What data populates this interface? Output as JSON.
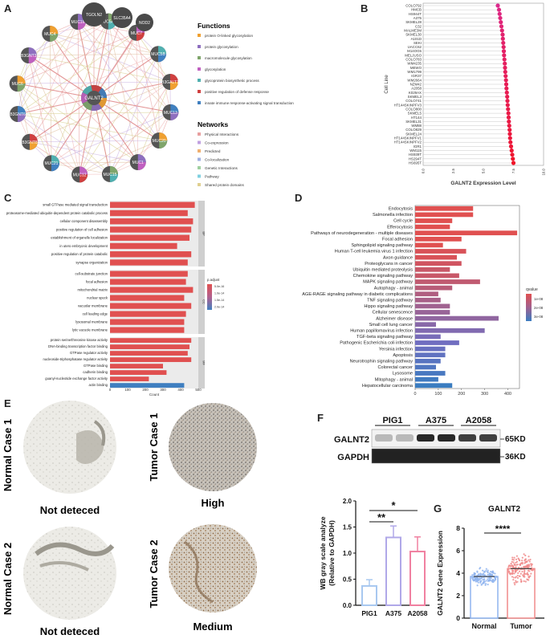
{
  "panels": {
    "a": {
      "letter": "A"
    },
    "b": {
      "letter": "B"
    },
    "c": {
      "letter": "C"
    },
    "d": {
      "letter": "D"
    },
    "e": {
      "letter": "E"
    },
    "f": {
      "letter": "F"
    },
    "g": {
      "letter": "G"
    }
  },
  "network": {
    "center": "GALNT2",
    "top_nodes": [
      "TGOLN2",
      "SLC35A4",
      "NOD2"
    ],
    "ring_nodes": [
      "MUC4",
      "MUC16",
      "MUC5AC",
      "MUC7",
      "MUC5B",
      "B3GALT1",
      "MUC13",
      "MUC20",
      "MUC1",
      "MUC15",
      "MUC12",
      "MUC21",
      "B3GNT8",
      "B3GNT6",
      "MUC6",
      "B3GNT3"
    ],
    "functions_title": "Functions",
    "functions": [
      {
        "label": "protein O-linked glycosylation",
        "color": "#f0a030"
      },
      {
        "label": "protein glycosylation",
        "color": "#8e6fbf"
      },
      {
        "label": "macromolecule glycosylation",
        "color": "#7fa56b"
      },
      {
        "label": "glycosylation",
        "color": "#c060c0"
      },
      {
        "label": "glycoprotein biosynthetic process",
        "color": "#50b0b0"
      },
      {
        "label": "positive regulation of defense response",
        "color": "#d04040"
      },
      {
        "label": "innate immune response-activating signal transduction",
        "color": "#4080c0"
      }
    ],
    "networks_title": "Networks",
    "networks": [
      {
        "label": "Physical Interactions",
        "color": "#e8a0a0"
      },
      {
        "label": "Co-expression",
        "color": "#c0a0e0"
      },
      {
        "label": "Predicted",
        "color": "#f0b070"
      },
      {
        "label": "Co-localization",
        "color": "#a0b0e0"
      },
      {
        "label": "Genetic Interactions",
        "color": "#a0d0a0"
      },
      {
        "label": "Pathway",
        "color": "#80d0e0"
      },
      {
        "label": "Shared protein domains",
        "color": "#e0d090"
      }
    ]
  },
  "chart_data": [
    {
      "panel": "B",
      "type": "scatter",
      "xlabel": "GALNT2 Expression Level",
      "ylabel": "Cell Line",
      "xlim": [
        0,
        10
      ],
      "xticks": [
        "0.0",
        "2.5",
        "5.0",
        "7.5",
        "10.0"
      ],
      "categories": [
        "COLO792",
        "HMCB",
        "HS944T",
        "A375",
        "SKMEL28",
        "C32",
        "MALME3M",
        "SKMEL30",
        "A101D",
        "SEKI",
        "UACC62",
        "M14OG5",
        "MELJUSO",
        "COLO783",
        "WM4235",
        "MEWO",
        "WM1799",
        "IGR37",
        "WM2664",
        "NZM42",
        "A2058",
        "K029AX",
        "SKMEL3",
        "COLO741",
        "HT144SKINPFV3",
        "COLO800",
        "SKMEL5",
        "HT144",
        "SKMEL31",
        "WM88",
        "COLO829",
        "SKMEL24",
        "HT144SKINPFV1",
        "HT144SKINPFV2",
        "IGR1",
        "WM115",
        "HS939T",
        "HS294T",
        "HS695T"
      ],
      "values": [
        6.2,
        6.3,
        6.35,
        6.4,
        6.45,
        6.5,
        6.55,
        6.6,
        6.62,
        6.65,
        6.68,
        6.7,
        6.72,
        6.75,
        6.78,
        6.8,
        6.82,
        6.85,
        6.88,
        6.9,
        6.92,
        6.95,
        6.98,
        7.0,
        7.02,
        7.05,
        7.08,
        7.1,
        7.12,
        7.15,
        7.18,
        7.2,
        7.22,
        7.25,
        7.3,
        7.35,
        7.4,
        7.45,
        7.5
      ]
    },
    {
      "panel": "C",
      "type": "bar",
      "xlabel": "Count",
      "xlim": [
        0,
        500
      ],
      "xticks": [
        "0",
        "100",
        "200",
        "300",
        "400",
        "500"
      ],
      "legend_title": "p.adjust",
      "legend_ticks": [
        "5.0e-16",
        "1.0e-14",
        "1.5e-14",
        "2.0e-14"
      ],
      "groups": [
        {
          "name": "BP",
          "categories": [
            "small GTPase mediated signal transduction",
            "proteasome-mediated ubiquitin-dependent protein catabolic process",
            "cellular component disassembly",
            "positive regulation of cell adhesion",
            "establishment of organelle localization",
            "in utero embryonic development",
            "positive regulation of protein catabolic",
            "synapse organization"
          ],
          "values": [
            480,
            440,
            470,
            460,
            450,
            380,
            460,
            440
          ],
          "colors": [
            "#e05050",
            "#e05050",
            "#e05050",
            "#e05050",
            "#e05050",
            "#e05050",
            "#e05050",
            "#e05050"
          ]
        },
        {
          "name": "CC",
          "categories": [
            "cell-substrate junction",
            "focal adhesion",
            "mitochondrial matrix",
            "nuclear speck",
            "vacuolar membrane",
            "cell leading edge",
            "lysosomal membrane",
            "lytic vacuole membrane"
          ],
          "values": [
            440,
            430,
            470,
            420,
            460,
            430,
            420,
            420
          ],
          "colors": [
            "#e05050",
            "#e05050",
            "#e05050",
            "#e05050",
            "#e05050",
            "#e05050",
            "#e05050",
            "#e05050"
          ]
        },
        {
          "name": "MF",
          "categories": [
            "protein serine/threonine kinase activity",
            "DNA-binding transcription factor binding",
            "GTPase regulator activity",
            "nucleoside-triphosphatase regulator activity",
            "GTPase binding",
            "cadherin binding",
            "guanyl-nucleotide exchange factor activity",
            "actin binding"
          ],
          "values": [
            460,
            450,
            440,
            460,
            300,
            320,
            220,
            420
          ],
          "colors": [
            "#e05050",
            "#e05050",
            "#e05050",
            "#e05050",
            "#e05050",
            "#e05050",
            "#e05050",
            "#3f7fc0"
          ]
        }
      ]
    },
    {
      "panel": "D",
      "type": "bar",
      "xlabel": "Count",
      "xlim": [
        0,
        450
      ],
      "xticks": [
        "0",
        "100",
        "200",
        "300",
        "400"
      ],
      "legend_title": "qvalue",
      "legend_ticks": [
        "1e-08",
        "2e-08",
        "3e-08"
      ],
      "categories": [
        "Endocytosis",
        "Salmonella infection",
        "Cell cycle",
        "Efferocytosis",
        "Pathways of neurodegeneration - multiple diseases",
        "Focal adhesion",
        "Sphingolipid signaling pathway",
        "Human T-cell leukemia virus 1 infection",
        "Axon guidance",
        "Proteoglycans in cancer",
        "Ubiquitin mediated proteolysis",
        "Chemokine signaling pathway",
        "MAPK signaling pathway",
        "Autophagy - animal",
        "AGE-RAGE signaling pathway in diabetic complications",
        "TNF signaling pathway",
        "Hippo signaling pathway",
        "Cellular senescence",
        "Alzheimer disease",
        "Small cell lung cancer",
        "Human papillomavirus infection",
        "TGF-beta signaling pathway",
        "Pathogenic Escherichia coli infection",
        "Yersinia infection",
        "Apoptosis",
        "Neurotrophin signaling pathway",
        "Colorectal cancer",
        "Lysosome",
        "Mitophagy - animal",
        "Hepatocellular carcinoma"
      ],
      "values": [
        250,
        250,
        160,
        150,
        440,
        200,
        120,
        220,
        180,
        200,
        150,
        190,
        280,
        160,
        100,
        110,
        150,
        150,
        360,
        90,
        300,
        110,
        190,
        130,
        130,
        110,
        90,
        130,
        100,
        160
      ],
      "colors": [
        "#e05050",
        "#e05050",
        "#e05050",
        "#e05050",
        "#e05050",
        "#e05050",
        "#e05050",
        "#d85258",
        "#d85258",
        "#d05460",
        "#c85868",
        "#c85868",
        "#c05a70",
        "#b85c78",
        "#b05e80",
        "#a86088",
        "#a06290",
        "#986498",
        "#9066a0",
        "#8868a8",
        "#806ab0",
        "#786cb8",
        "#706ec0",
        "#6870c0",
        "#6072c0",
        "#5874c0",
        "#5076c0",
        "#4878c0",
        "#407ac0",
        "#3a7cc0"
      ]
    },
    {
      "panel": "F",
      "type": "bar",
      "ylabel": "WB gray scale analyze\n(Relative to GAPDH)",
      "ylim": [
        0,
        2.0
      ],
      "yticks": [
        "0.0",
        "0.5",
        "1.0",
        "1.5",
        "2.0"
      ],
      "categories": [
        "PIG1",
        "A375",
        "A2058"
      ],
      "values": [
        0.37,
        1.3,
        1.03
      ],
      "errors": [
        0.12,
        0.22,
        0.28
      ],
      "colors": [
        "#a8c8f0",
        "#b0a8e8",
        "#f080a0"
      ],
      "significance": [
        "**",
        "*"
      ]
    },
    {
      "panel": "G",
      "type": "bar",
      "title": "GALNT2",
      "ylabel": "GALNT2 Gene Expression",
      "ylim": [
        0,
        8
      ],
      "yticks": [
        "0",
        "2",
        "4",
        "6",
        "8"
      ],
      "categories": [
        "Normal",
        "Tumor"
      ],
      "values": [
        3.7,
        4.4
      ],
      "colors": [
        "#8fb4ef",
        "#f08a8a"
      ],
      "significance": "****"
    }
  ],
  "ihc": {
    "normal1": {
      "label": "Normal Case 1",
      "caption": "Not deteced"
    },
    "normal2": {
      "label": "Normal Case 2",
      "caption": "Not deteced"
    },
    "tumor1": {
      "label": "Tumor Case 1",
      "caption": "High"
    },
    "tumor2": {
      "label": "Tumor Case 2",
      "caption": "Medium"
    }
  },
  "blot": {
    "lanes": [
      "PIG1",
      "A375",
      "A2058"
    ],
    "proteins": [
      {
        "name": "GALNT2",
        "size": "65KD"
      },
      {
        "name": "GAPDH",
        "size": "36KD"
      }
    ]
  }
}
